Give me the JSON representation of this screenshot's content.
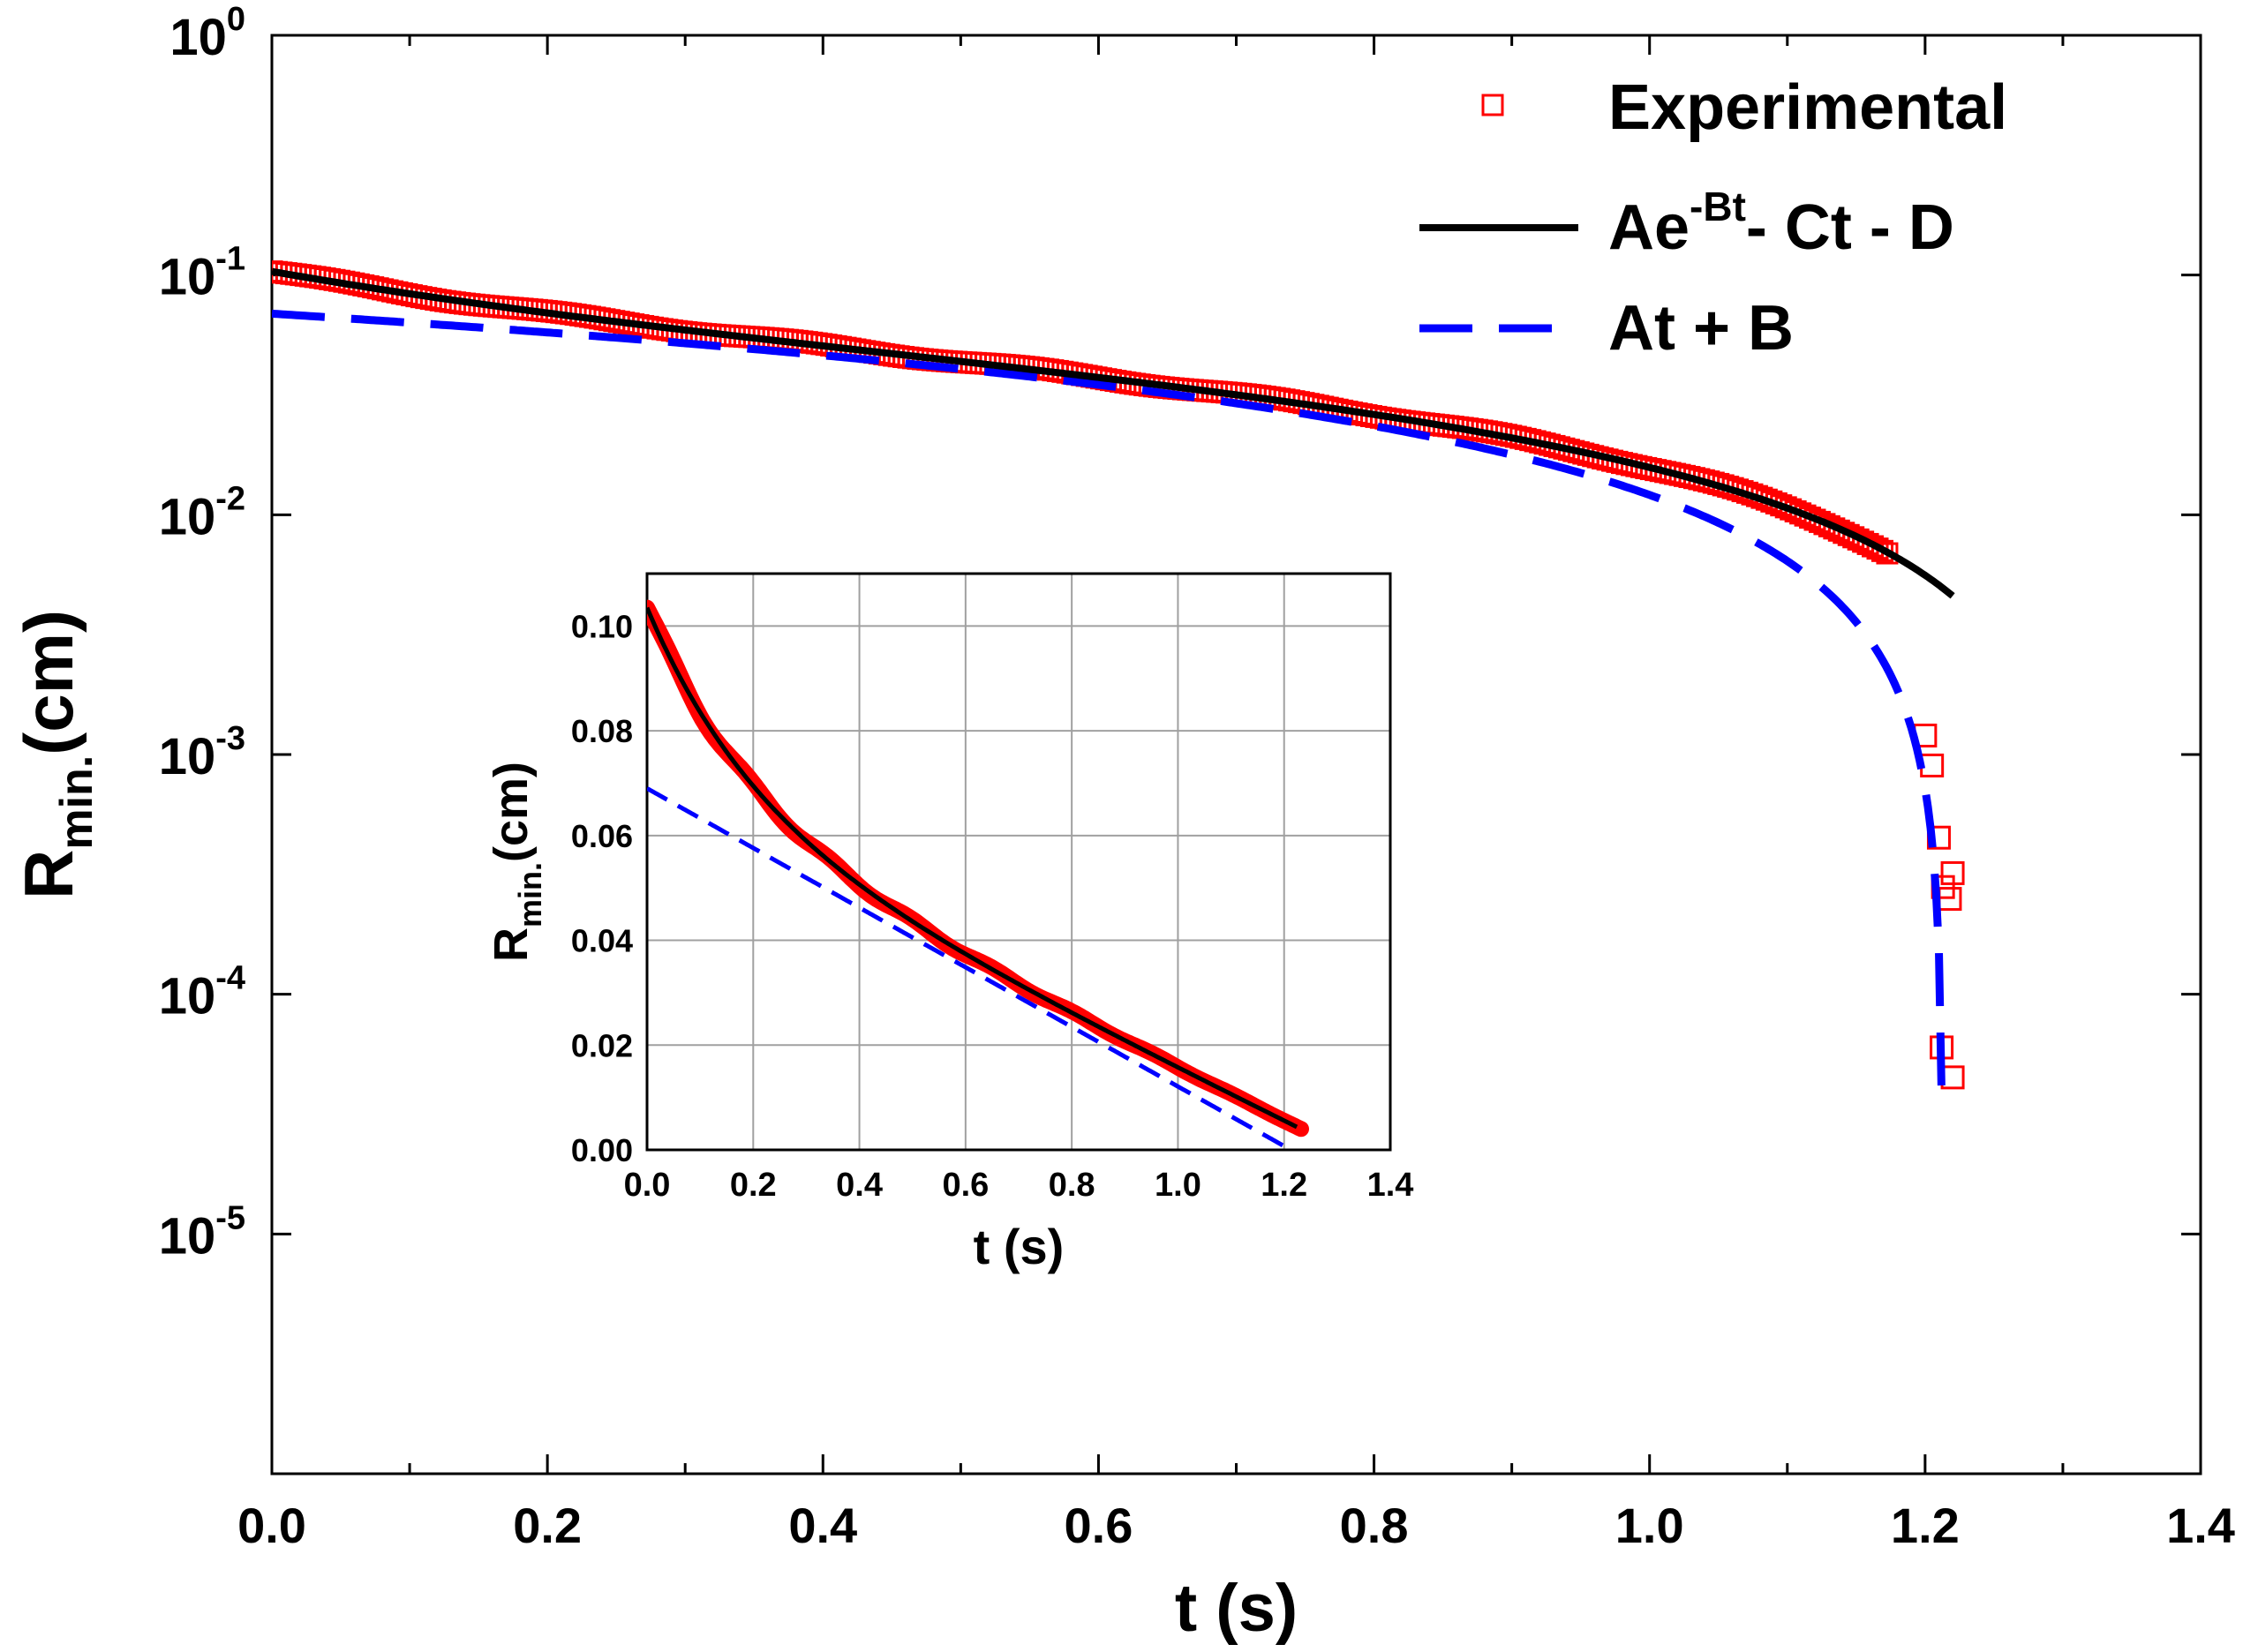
{
  "chart_data": [
    {
      "id": "main",
      "type": "scatter",
      "xlabel": "t (s)",
      "ylabel_main": "R",
      "ylabel_sub": "min.",
      "ylabel_unit": "(cm)",
      "xlim": [
        0.0,
        1.4
      ],
      "yscale": "log",
      "ylim_exp": [
        -6,
        0
      ],
      "x_ticks": [
        "0.0",
        "0.2",
        "0.4",
        "0.6",
        "0.8",
        "1.0",
        "1.2",
        "1.4"
      ],
      "y_ticks": [
        {
          "base": "10",
          "exp": "0"
        },
        {
          "base": "10",
          "exp": "-1"
        },
        {
          "base": "10",
          "exp": "-2"
        },
        {
          "base": "10",
          "exp": "-3"
        },
        {
          "base": "10",
          "exp": "-4"
        },
        {
          "base": "10",
          "exp": "-5"
        }
      ],
      "legend": {
        "position": "top-right",
        "entries": [
          {
            "label": "Experimental"
          },
          {
            "label_base": "Ae",
            "label_sup": "-Bt",
            "label_rest": "- Ct - D"
          },
          {
            "label": "At + B"
          }
        ]
      },
      "series": [
        {
          "name": "Experimental",
          "style": "open-square",
          "color": "#ff0000",
          "outliers": [
            [
              1.2,
              0.0012
            ],
            [
              1.205,
              0.0009
            ],
            [
              1.21,
              0.00045
            ],
            [
              1.213,
              0.00028
            ],
            [
              1.218,
              0.00025
            ],
            [
              1.22,
              0.00032
            ],
            [
              1.212,
              6e-05
            ],
            [
              1.22,
              4.5e-05
            ]
          ]
        },
        {
          "name": "Ae^-Bt - Ct - D",
          "style": "solid",
          "color": "#000000",
          "params": {
            "A": 0.038,
            "B": 5.0,
            "C": 0.05,
            "D": -0.0655
          }
        },
        {
          "name": "At + B",
          "style": "dashed",
          "color": "#0000ff",
          "params": {
            "A": -0.0569,
            "B": 0.069
          }
        }
      ]
    },
    {
      "id": "inset",
      "type": "line",
      "xlabel": "t (s)",
      "ylabel_main": "R",
      "ylabel_sub": "min.",
      "ylabel_unit": "(cm)",
      "xlim": [
        0.0,
        1.4
      ],
      "ylim": [
        0.0,
        0.11
      ],
      "grid": true,
      "x_ticks": [
        "0.0",
        "0.2",
        "0.4",
        "0.6",
        "0.8",
        "1.0",
        "1.2",
        "1.4"
      ],
      "y_ticks": [
        "0.00",
        "0.02",
        "0.04",
        "0.06",
        "0.08",
        "0.10"
      ],
      "series": [
        {
          "name": "Experimental",
          "style": "thick",
          "color": "#ff0000"
        },
        {
          "name": "Ae^-Bt - Ct - D",
          "style": "solid",
          "color": "#000000"
        },
        {
          "name": "At + B",
          "style": "dashed",
          "color": "#0000ff"
        }
      ]
    }
  ]
}
